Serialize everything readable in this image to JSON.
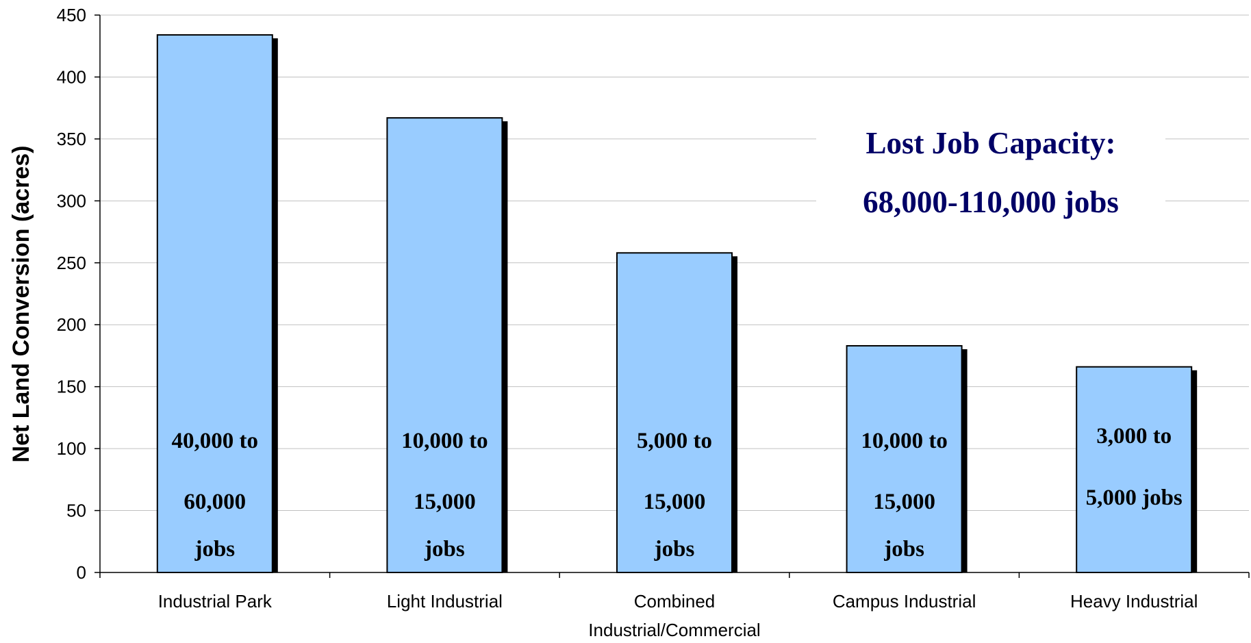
{
  "chart_data": {
    "type": "bar",
    "categories": [
      "Industrial Park",
      "Light Industrial",
      "Combined Industrial/Commercial",
      "Campus Industrial",
      "Heavy Industrial"
    ],
    "category_label_lines": [
      [
        "Industrial Park"
      ],
      [
        "Light Industrial"
      ],
      [
        "Combined",
        "Industrial/Commercial"
      ],
      [
        "Campus Industrial"
      ],
      [
        "Heavy Industrial"
      ]
    ],
    "values": [
      434,
      367,
      258,
      183,
      166
    ],
    "bar_labels": [
      [
        "40,000 to",
        "60,000",
        "jobs"
      ],
      [
        "10,000 to",
        "15,000",
        "jobs"
      ],
      [
        "5,000 to",
        "15,000",
        "jobs"
      ],
      [
        "10,000 to",
        "15,000",
        "jobs"
      ],
      [
        "3,000 to",
        "5,000 jobs"
      ]
    ],
    "title": "",
    "xlabel": "",
    "ylabel": "Net Land Conversion (acres)",
    "ylim": [
      0,
      450
    ],
    "yticks": [
      0,
      50,
      100,
      150,
      200,
      250,
      300,
      350,
      400,
      450
    ],
    "grid": true,
    "legend": "none",
    "annotation": [
      "Lost Job Capacity:",
      "68,000-110,000 jobs"
    ],
    "colors": {
      "bar_fill": "#99ccff",
      "bar_stroke": "#000000",
      "bar_shadow": "#000000",
      "grid": "#c0c0c0",
      "annotation": "#000066"
    }
  }
}
